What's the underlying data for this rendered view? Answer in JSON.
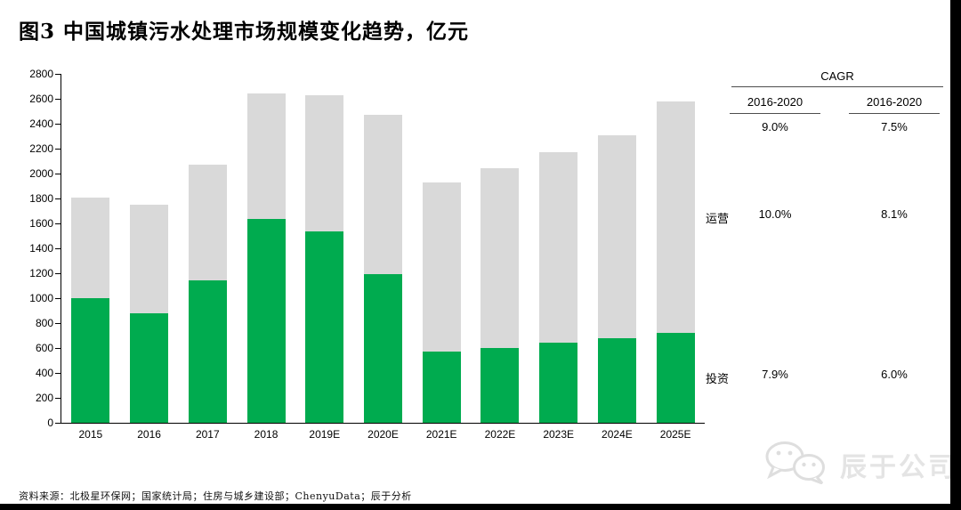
{
  "title": "图3 中国城镇污水处理市场规模变化趋势，亿元",
  "chart_data": {
    "type": "bar",
    "stacked": true,
    "title": "中国城镇污水处理市场规模变化趋势",
    "unit": "亿元",
    "categories": [
      "2015",
      "2016",
      "2017",
      "2018",
      "2019E",
      "2020E",
      "2021E",
      "2022E",
      "2023E",
      "2024E",
      "2025E"
    ],
    "series": [
      {
        "name": "投资",
        "color": "#00AB4F",
        "values": [
          1000,
          880,
          1140,
          1635,
          1535,
          1190,
          570,
          600,
          640,
          680,
          720
        ]
      },
      {
        "name": "运营",
        "color": "#D9D9D9",
        "values": [
          810,
          870,
          930,
          1005,
          1095,
          1285,
          1360,
          1445,
          1535,
          1630,
          1860
        ]
      }
    ],
    "totals": [
      1810,
      1750,
      2070,
      2640,
      2630,
      2475,
      1930,
      2045,
      2175,
      2310,
      2580
    ],
    "ylim": [
      0,
      2800
    ],
    "yticks": [
      0,
      200,
      400,
      600,
      800,
      1000,
      1200,
      1400,
      1600,
      1800,
      2000,
      2200,
      2400,
      2600,
      2800
    ],
    "grid": false,
    "legend": "none"
  },
  "cagr_table": {
    "title": "CAGR",
    "columns": [
      "2016-2020",
      "2016-2020"
    ],
    "overall": [
      "9.0%",
      "7.5%"
    ],
    "rows": [
      {
        "label": "运营",
        "values": [
          "10.0%",
          "8.1%"
        ]
      },
      {
        "label": "投资",
        "values": [
          "7.9%",
          "6.0%"
        ]
      }
    ]
  },
  "footer": {
    "source": "资料来源：北极星环保网；国家统计局；住房与城乡建设部；ChenyuData；辰于分析"
  },
  "watermark": {
    "brand": "辰于公司",
    "icon": "wechat-icon"
  },
  "colors": {
    "investment": "#00AB4F",
    "operation": "#D9D9D9",
    "axis": "#000000",
    "watermark": "#E4E4E4"
  }
}
